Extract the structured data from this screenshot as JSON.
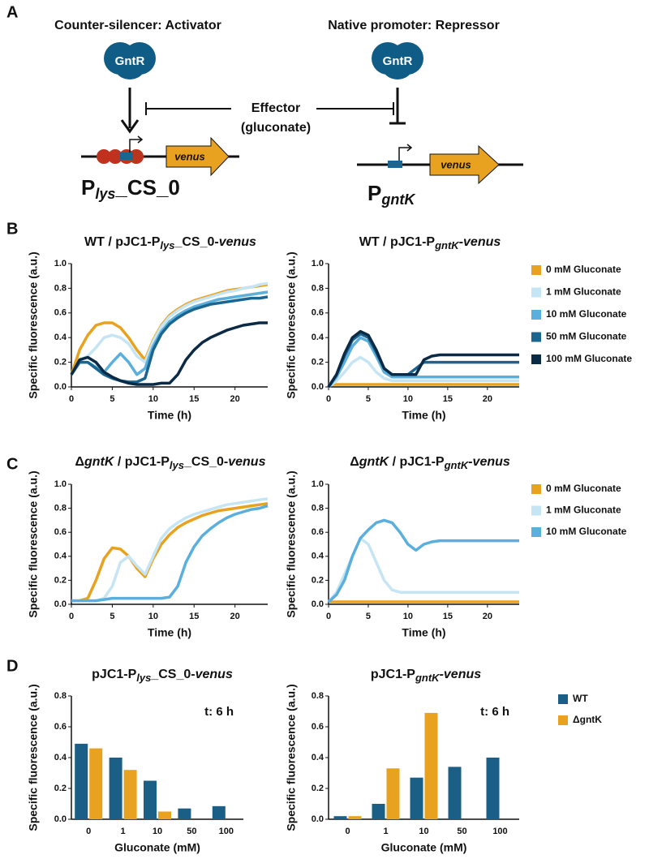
{
  "panels": [
    "A",
    "B",
    "C",
    "D"
  ],
  "diagram": {
    "left_title": "Counter-silencer: Activator",
    "right_title": "Native promoter: Repressor",
    "regulator_left": "GntR",
    "regulator_right": "GntR",
    "effector": "Effector",
    "effector_sub": "(gluconate)",
    "gene_left": "venus",
    "gene_right": "venus",
    "promoter_left": [
      "P",
      "lys",
      "_CS_0"
    ],
    "promoter_right": [
      "P",
      "gntK"
    ]
  },
  "chart_data": [
    {
      "type": "line",
      "title": [
        "WT / pJC1-P",
        "lys",
        "_CS_0-",
        "venus"
      ],
      "xlabel": "Time (h)",
      "ylabel": "Specific fluorescence (a.u.)",
      "x": [
        0,
        1,
        2,
        3,
        4,
        5,
        6,
        7,
        8,
        9,
        10,
        11,
        12,
        13,
        14,
        15,
        16,
        17,
        18,
        19,
        20,
        21,
        22,
        23,
        24
      ],
      "xlim": [
        0,
        24
      ],
      "xticks": [
        0,
        5,
        10,
        15,
        20
      ],
      "ylim": [
        0,
        1
      ],
      "yticks": [
        {
          "value": 0,
          "label": "0.0"
        },
        0.2,
        0.4,
        0.6,
        0.8,
        {
          "value": 1,
          "label": "1.0"
        }
      ],
      "series": [
        {
          "name": "0 mM Gluconate",
          "color": "#e8a21f",
          "values": [
            0.1,
            0.3,
            0.42,
            0.5,
            0.52,
            0.52,
            0.48,
            0.4,
            0.3,
            0.22,
            0.38,
            0.5,
            0.58,
            0.63,
            0.67,
            0.7,
            0.72,
            0.74,
            0.76,
            0.78,
            0.79,
            0.8,
            0.81,
            0.82,
            0.83
          ]
        },
        {
          "name": "1 mM Gluconate",
          "color": "#c6e5f4",
          "values": [
            0.1,
            0.22,
            0.25,
            0.32,
            0.4,
            0.42,
            0.4,
            0.35,
            0.25,
            0.2,
            0.37,
            0.49,
            0.57,
            0.62,
            0.66,
            0.69,
            0.71,
            0.73,
            0.75,
            0.77,
            0.78,
            0.8,
            0.81,
            0.83,
            0.84
          ]
        },
        {
          "name": "10 mM Gluconate",
          "color": "#5aafdc",
          "values": [
            0.1,
            0.2,
            0.2,
            0.16,
            0.12,
            0.2,
            0.27,
            0.2,
            0.1,
            0.15,
            0.33,
            0.45,
            0.53,
            0.58,
            0.62,
            0.65,
            0.67,
            0.69,
            0.71,
            0.72,
            0.73,
            0.74,
            0.75,
            0.76,
            0.77
          ]
        },
        {
          "name": "50 mM Gluconate",
          "color": "#1b6690",
          "values": [
            0.1,
            0.2,
            0.2,
            0.15,
            0.1,
            0.07,
            0.05,
            0.04,
            0.04,
            0.07,
            0.3,
            0.43,
            0.51,
            0.56,
            0.6,
            0.63,
            0.65,
            0.67,
            0.68,
            0.69,
            0.7,
            0.71,
            0.72,
            0.72,
            0.73
          ]
        },
        {
          "name": "100 mM Gluconate",
          "color": "#0b2a45",
          "values": [
            0.1,
            0.22,
            0.24,
            0.2,
            0.12,
            0.08,
            0.05,
            0.03,
            0.02,
            0.02,
            0.02,
            0.03,
            0.03,
            0.1,
            0.22,
            0.3,
            0.36,
            0.4,
            0.43,
            0.46,
            0.48,
            0.5,
            0.51,
            0.52,
            0.52
          ]
        }
      ]
    },
    {
      "type": "line",
      "title": [
        "WT / pJC1-P",
        "gntK",
        "-",
        "venus"
      ],
      "xlabel": "Time (h)",
      "ylabel": "Specific fluorescence (a.u.)",
      "legend": "right",
      "x": [
        0,
        1,
        2,
        3,
        4,
        5,
        6,
        7,
        8,
        9,
        10,
        11,
        12,
        13,
        14,
        15,
        16,
        17,
        18,
        19,
        20,
        21,
        22,
        23,
        24
      ],
      "xlim": [
        0,
        24
      ],
      "xticks": [
        0,
        5,
        10,
        15,
        20
      ],
      "ylim": [
        0,
        1
      ],
      "yticks": [
        {
          "value": 0,
          "label": "0.0"
        },
        0.2,
        0.4,
        0.6,
        0.8,
        {
          "value": 1,
          "label": "1.0"
        }
      ],
      "series": [
        {
          "name": "0 mM Gluconate",
          "color": "#e8a21f",
          "values": [
            0.02,
            0.02,
            0.02,
            0.02,
            0.02,
            0.02,
            0.02,
            0.02,
            0.02,
            0.02,
            0.02,
            0.02,
            0.02,
            0.02,
            0.02,
            0.02,
            0.02,
            0.02,
            0.02,
            0.02,
            0.02,
            0.02,
            0.02,
            0.02,
            0.02
          ]
        },
        {
          "name": "1 mM Gluconate",
          "color": "#c6e5f4",
          "values": [
            0,
            0.05,
            0.12,
            0.2,
            0.24,
            0.2,
            0.12,
            0.07,
            0.05,
            0.05,
            0.05,
            0.05,
            0.05,
            0.05,
            0.05,
            0.05,
            0.05,
            0.05,
            0.05,
            0.05,
            0.05,
            0.05,
            0.05,
            0.05,
            0.05
          ]
        },
        {
          "name": "10 mM Gluconate",
          "color": "#5aafdc",
          "values": [
            0,
            0.08,
            0.2,
            0.33,
            0.4,
            0.37,
            0.25,
            0.12,
            0.08,
            0.08,
            0.08,
            0.08,
            0.08,
            0.08,
            0.08,
            0.08,
            0.08,
            0.08,
            0.08,
            0.08,
            0.08,
            0.08,
            0.08,
            0.08,
            0.08
          ]
        },
        {
          "name": "50 mM Gluconate",
          "color": "#1b6690",
          "values": [
            0,
            0.1,
            0.25,
            0.38,
            0.43,
            0.4,
            0.28,
            0.15,
            0.1,
            0.1,
            0.1,
            0.15,
            0.2,
            0.2,
            0.2,
            0.2,
            0.2,
            0.2,
            0.2,
            0.2,
            0.2,
            0.2,
            0.2,
            0.2,
            0.2
          ]
        },
        {
          "name": "100 mM Gluconate",
          "color": "#0b2a45",
          "values": [
            0,
            0.1,
            0.27,
            0.4,
            0.45,
            0.42,
            0.3,
            0.15,
            0.1,
            0.1,
            0.1,
            0.1,
            0.22,
            0.25,
            0.26,
            0.26,
            0.26,
            0.26,
            0.26,
            0.26,
            0.26,
            0.26,
            0.26,
            0.26,
            0.26
          ]
        }
      ]
    },
    {
      "type": "line",
      "title": [
        "Δ",
        "gntK",
        " / pJC1-P",
        "lys",
        "_CS_0-",
        "venus"
      ],
      "xlabel": "Time (h)",
      "ylabel": "Specific fluorescence (a.u.)",
      "x": [
        0,
        1,
        2,
        3,
        4,
        5,
        6,
        7,
        8,
        9,
        10,
        11,
        12,
        13,
        14,
        15,
        16,
        17,
        18,
        19,
        20,
        21,
        22,
        23,
        24
      ],
      "xlim": [
        0,
        24
      ],
      "xticks": [
        0,
        5,
        10,
        15,
        20
      ],
      "ylim": [
        0,
        1
      ],
      "yticks": [
        {
          "value": 0,
          "label": "0.0"
        },
        0.2,
        0.4,
        0.6,
        0.8,
        {
          "value": 1,
          "label": "1.0"
        }
      ],
      "series": [
        {
          "name": "0 mM Gluconate",
          "color": "#e8a21f",
          "values": [
            0.03,
            0.03,
            0.05,
            0.2,
            0.38,
            0.47,
            0.46,
            0.4,
            0.3,
            0.23,
            0.38,
            0.5,
            0.58,
            0.64,
            0.68,
            0.71,
            0.74,
            0.76,
            0.78,
            0.79,
            0.8,
            0.81,
            0.82,
            0.83,
            0.84
          ]
        },
        {
          "name": "1 mM Gluconate",
          "color": "#c6e5f4",
          "values": [
            0.03,
            0.03,
            0.03,
            0.03,
            0.05,
            0.15,
            0.35,
            0.4,
            0.32,
            0.25,
            0.4,
            0.55,
            0.63,
            0.68,
            0.72,
            0.75,
            0.77,
            0.79,
            0.81,
            0.83,
            0.84,
            0.85,
            0.86,
            0.87,
            0.88
          ]
        },
        {
          "name": "10 mM Gluconate",
          "color": "#5aafdc",
          "values": [
            0.03,
            0.03,
            0.03,
            0.03,
            0.04,
            0.05,
            0.05,
            0.05,
            0.05,
            0.05,
            0.05,
            0.05,
            0.06,
            0.15,
            0.35,
            0.48,
            0.57,
            0.63,
            0.68,
            0.72,
            0.75,
            0.77,
            0.79,
            0.8,
            0.82
          ]
        }
      ]
    },
    {
      "type": "line",
      "title": [
        "Δ",
        "gntK",
        " / pJC1-P",
        "gntK",
        "-",
        "venus"
      ],
      "xlabel": "Time (h)",
      "ylabel": "Specific fluorescence (a.u.)",
      "legend": "right",
      "x": [
        0,
        1,
        2,
        3,
        4,
        5,
        6,
        7,
        8,
        9,
        10,
        11,
        12,
        13,
        14,
        15,
        16,
        17,
        18,
        19,
        20,
        21,
        22,
        23,
        24
      ],
      "xlim": [
        0,
        24
      ],
      "xticks": [
        0,
        5,
        10,
        15,
        20
      ],
      "ylim": [
        0,
        1
      ],
      "yticks": [
        {
          "value": 0,
          "label": "0.0"
        },
        0.2,
        0.4,
        0.6,
        0.8,
        {
          "value": 1,
          "label": "1.0"
        }
      ],
      "series": [
        {
          "name": "0 mM Gluconate",
          "color": "#e8a21f",
          "values": [
            0.02,
            0.02,
            0.02,
            0.02,
            0.02,
            0.02,
            0.02,
            0.02,
            0.02,
            0.02,
            0.02,
            0.02,
            0.02,
            0.02,
            0.02,
            0.02,
            0.02,
            0.02,
            0.02,
            0.02,
            0.02,
            0.02,
            0.02,
            0.02,
            0.02
          ]
        },
        {
          "name": "1 mM Gluconate",
          "color": "#c6e5f4",
          "values": [
            0.02,
            0.1,
            0.25,
            0.4,
            0.55,
            0.5,
            0.35,
            0.2,
            0.12,
            0.1,
            0.1,
            0.1,
            0.1,
            0.1,
            0.1,
            0.1,
            0.1,
            0.1,
            0.1,
            0.1,
            0.1,
            0.1,
            0.1,
            0.1,
            0.1
          ]
        },
        {
          "name": "10 mM Gluconate",
          "color": "#5aafdc",
          "values": [
            0.02,
            0.08,
            0.2,
            0.4,
            0.55,
            0.62,
            0.68,
            0.7,
            0.68,
            0.6,
            0.5,
            0.45,
            0.5,
            0.52,
            0.53,
            0.53,
            0.53,
            0.53,
            0.53,
            0.53,
            0.53,
            0.53,
            0.53,
            0.53,
            0.53
          ]
        }
      ]
    },
    {
      "type": "bar",
      "title": [
        "pJC1-P",
        "lys",
        "_CS_0-",
        "venus"
      ],
      "xlabel": "Gluconate (mM)",
      "ylabel": "Specific fluorescence (a.u.)",
      "annotation": "t: 6 h",
      "categories": [
        "0",
        "1",
        "10",
        "50",
        "100"
      ],
      "ylim": [
        0,
        0.8
      ],
      "yticks": [
        {
          "value": 0,
          "label": "0.0"
        },
        0.2,
        0.4,
        0.6,
        0.8
      ],
      "series": [
        {
          "name": "WT",
          "color": "#1b5f87",
          "values": [
            0.49,
            0.4,
            0.25,
            0.07,
            0.085
          ]
        },
        {
          "name": "ΔgntK",
          "color": "#e8a21f",
          "values": [
            0.46,
            0.32,
            0.05,
            null,
            null
          ]
        }
      ]
    },
    {
      "type": "bar",
      "title": [
        "pJC1-P",
        "gntK",
        "-",
        "venus"
      ],
      "xlabel": "Gluconate (mM)",
      "ylabel": "Specific fluorescence (a.u.)",
      "annotation": "t: 6 h",
      "legend": "right",
      "categories": [
        "0",
        "1",
        "10",
        "50",
        "100"
      ],
      "ylim": [
        0,
        0.8
      ],
      "yticks": [
        {
          "value": 0,
          "label": "0.0"
        },
        0.2,
        0.4,
        0.6,
        0.8
      ],
      "series": [
        {
          "name": "WT",
          "color": "#1b5f87",
          "values": [
            0.02,
            0.1,
            0.27,
            0.34,
            0.4
          ]
        },
        {
          "name": "ΔgntK",
          "color": "#e8a21f",
          "values": [
            0.02,
            0.33,
            0.69,
            null,
            null
          ]
        }
      ]
    }
  ]
}
